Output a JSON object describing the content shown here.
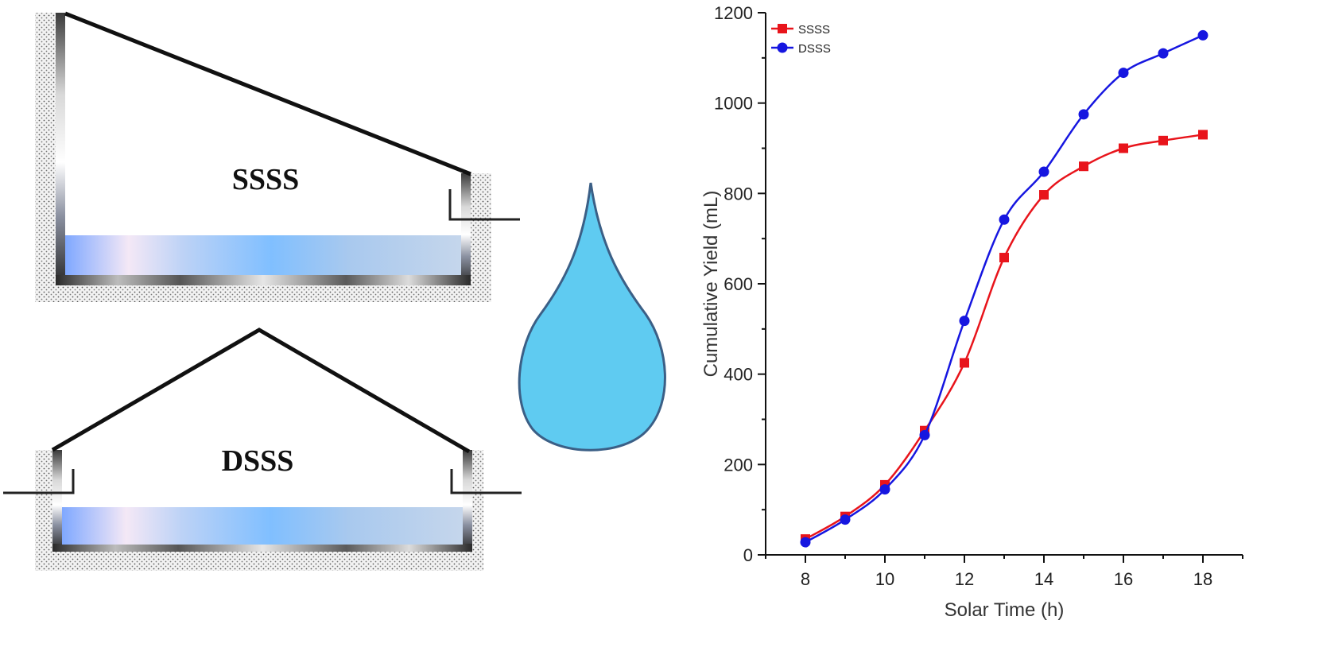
{
  "diagram": {
    "top_label": "SSSS",
    "bottom_label": "DSSS"
  },
  "colors": {
    "ssss": "#e8141b",
    "dsss": "#1616e0",
    "droplet_fill": "#5fcbf1",
    "droplet_stroke": "#3b5f86"
  },
  "icons": [
    "water-drop-icon"
  ],
  "chart_data": {
    "type": "line",
    "xlabel": "Solar Time (h)",
    "ylabel": "Cumulative Yield (mL)",
    "xlim": [
      7,
      19
    ],
    "ylim": [
      0,
      1200
    ],
    "xticks": [
      8,
      10,
      12,
      14,
      16,
      18
    ],
    "yticks": [
      0,
      200,
      400,
      600,
      800,
      1000,
      1200
    ],
    "legend_position": "top-left",
    "grid": false,
    "x": [
      8,
      9,
      10,
      11,
      12,
      13,
      14,
      15,
      16,
      17,
      18
    ],
    "series": [
      {
        "name": "SSSS",
        "marker": "square",
        "values": [
          35,
          85,
          155,
          275,
          425,
          658,
          797,
          860,
          900,
          917,
          930
        ]
      },
      {
        "name": "DSSS",
        "marker": "circle",
        "values": [
          28,
          78,
          145,
          265,
          518,
          742,
          848,
          975,
          1067,
          1110,
          1150
        ]
      }
    ]
  }
}
